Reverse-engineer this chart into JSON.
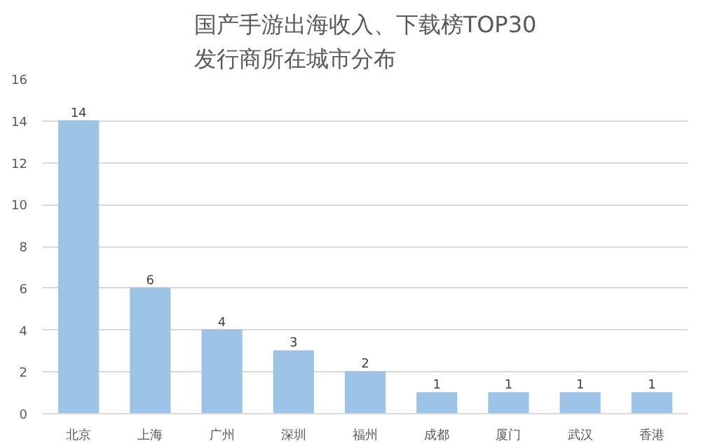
{
  "chart_data": {
    "type": "bar",
    "title": "国产手游出海收入、下载榜TOP30\n发行商所在城市分布",
    "categories": [
      "北京",
      "上海",
      "广州",
      "深圳",
      "福州",
      "成都",
      "厦门",
      "武汉",
      "香港"
    ],
    "values": [
      14,
      6,
      4,
      3,
      2,
      1,
      1,
      1,
      1
    ],
    "color": "#9dc3e6",
    "ylim": [
      0,
      16
    ],
    "yticks": [
      0,
      2,
      4,
      6,
      8,
      10,
      12,
      14,
      16
    ],
    "grid": "y",
    "data_labels": true
  }
}
